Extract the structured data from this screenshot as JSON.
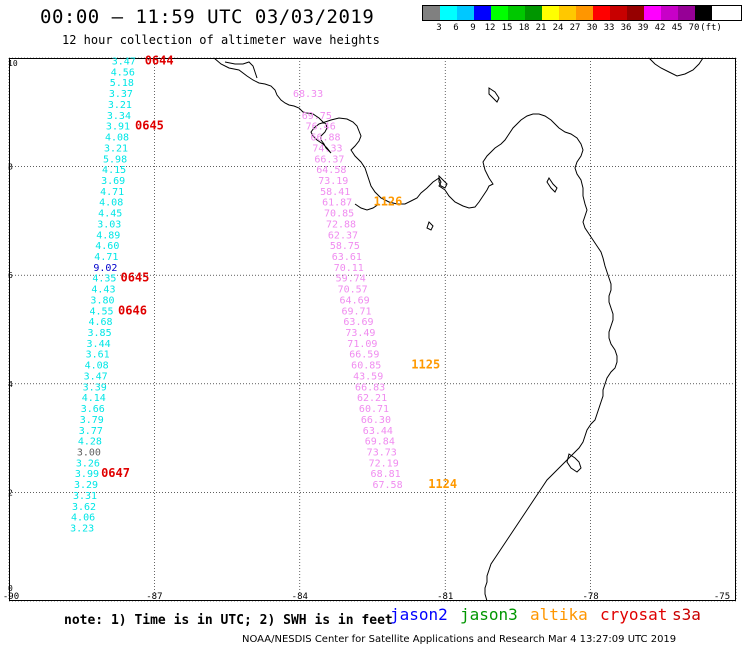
{
  "header": {
    "title": "00:00 – 11:59 UTC 03/03/2019",
    "subtitle": "12 hour collection of altimeter wave heights"
  },
  "scale": {
    "colors": [
      "#808080",
      "#00ffff",
      "#00c8ff",
      "#0000ff",
      "#00ff00",
      "#00c800",
      "#009600",
      "#ffff00",
      "#ffc800",
      "#ff9600",
      "#ff0000",
      "#c80000",
      "#960000",
      "#ff00ff",
      "#c800c8",
      "#960096",
      "#000000"
    ],
    "labels": [
      "3",
      "6",
      "9",
      "12",
      "15",
      "18",
      "21",
      "24",
      "27",
      "30",
      "33",
      "36",
      "39",
      "42",
      "45",
      "70",
      "(ft)"
    ]
  },
  "axes": {
    "x_ticks": [
      "-90",
      "-87",
      "-84",
      "-81",
      "-78",
      "-75"
    ],
    "y_ticks": [
      "0",
      "2",
      "4",
      "6",
      "8",
      "10"
    ]
  },
  "map": {
    "tracks": [
      {
        "satellite": "cryosat",
        "color": "#00e6e6",
        "points": [
          {
            "lon": -87.88,
            "lat": 9.88,
            "v": "3.47"
          },
          {
            "lon": -87.9,
            "lat": 9.68,
            "v": "4.56"
          },
          {
            "lon": -87.92,
            "lat": 9.48,
            "v": "5.18"
          },
          {
            "lon": -87.94,
            "lat": 9.28,
            "v": "3.37"
          },
          {
            "lon": -87.96,
            "lat": 9.08,
            "v": "3.21"
          },
          {
            "lon": -87.98,
            "lat": 8.88,
            "v": "3.34"
          },
          {
            "lon": -88.0,
            "lat": 8.68,
            "v": "3.91"
          },
          {
            "lon": -88.02,
            "lat": 8.48,
            "v": "4.08"
          },
          {
            "lon": -88.04,
            "lat": 8.28,
            "v": "3.21"
          },
          {
            "lon": -88.06,
            "lat": 8.08,
            "v": "5.98"
          },
          {
            "lon": -88.08,
            "lat": 7.88,
            "v": "4.15"
          },
          {
            "lon": -88.1,
            "lat": 7.68,
            "v": "3.69"
          },
          {
            "lon": -88.12,
            "lat": 7.48,
            "v": "4.71"
          },
          {
            "lon": -88.14,
            "lat": 7.28,
            "v": "4.08"
          },
          {
            "lon": -88.16,
            "lat": 7.08,
            "v": "4.45"
          },
          {
            "lon": -88.18,
            "lat": 6.88,
            "v": "3.03"
          },
          {
            "lon": -88.2,
            "lat": 6.68,
            "v": "4.89"
          },
          {
            "lon": -88.22,
            "lat": 6.48,
            "v": "4.60"
          },
          {
            "lon": -88.24,
            "lat": 6.28,
            "v": "4.71"
          },
          {
            "lon": -88.26,
            "lat": 6.08,
            "v": "9.02",
            "c": "#0000cc"
          },
          {
            "lon": -88.28,
            "lat": 5.88,
            "v": "4.35"
          },
          {
            "lon": -88.3,
            "lat": 5.68,
            "v": "4.43"
          },
          {
            "lon": -88.32,
            "lat": 5.48,
            "v": "3.80"
          },
          {
            "lon": -88.34,
            "lat": 5.28,
            "v": "4.55"
          },
          {
            "lon": -88.36,
            "lat": 5.08,
            "v": "4.68"
          },
          {
            "lon": -88.38,
            "lat": 4.88,
            "v": "3.85"
          },
          {
            "lon": -88.4,
            "lat": 4.68,
            "v": "3.44"
          },
          {
            "lon": -88.42,
            "lat": 4.48,
            "v": "3.61"
          },
          {
            "lon": -88.44,
            "lat": 4.28,
            "v": "4.08"
          },
          {
            "lon": -88.46,
            "lat": 4.08,
            "v": "3.47"
          },
          {
            "lon": -88.48,
            "lat": 3.88,
            "v": "3.39"
          },
          {
            "lon": -88.5,
            "lat": 3.68,
            "v": "4.14"
          },
          {
            "lon": -88.52,
            "lat": 3.48,
            "v": "3.66"
          },
          {
            "lon": -88.54,
            "lat": 3.28,
            "v": "3.79"
          },
          {
            "lon": -88.56,
            "lat": 3.08,
            "v": "3.77"
          },
          {
            "lon": -88.58,
            "lat": 2.88,
            "v": "4.28"
          },
          {
            "lon": -88.6,
            "lat": 2.68,
            "v": "3.00",
            "c": "#606060"
          },
          {
            "lon": -88.62,
            "lat": 2.48,
            "v": "3.26"
          },
          {
            "lon": -88.64,
            "lat": 2.28,
            "v": "3.99"
          },
          {
            "lon": -88.66,
            "lat": 2.08,
            "v": "3.29"
          },
          {
            "lon": -88.68,
            "lat": 1.88,
            "v": "3.31"
          },
          {
            "lon": -88.7,
            "lat": 1.68,
            "v": "3.62"
          },
          {
            "lon": -88.72,
            "lat": 1.48,
            "v": "4.06"
          },
          {
            "lon": -88.74,
            "lat": 1.28,
            "v": "3.23"
          }
        ]
      },
      {
        "satellite": "s3a",
        "color": "#f08cf0",
        "points": [
          {
            "lon": -84.14,
            "lat": 9.28,
            "v": "68.33"
          },
          {
            "lon": -83.96,
            "lat": 8.88,
            "v": "69.75"
          },
          {
            "lon": -83.88,
            "lat": 8.68,
            "v": "76.46"
          },
          {
            "lon": -83.78,
            "lat": 8.48,
            "v": "66.88"
          },
          {
            "lon": -83.74,
            "lat": 8.28,
            "v": "74.33"
          },
          {
            "lon": -83.7,
            "lat": 8.08,
            "v": "66.37"
          },
          {
            "lon": -83.66,
            "lat": 7.88,
            "v": "64.58"
          },
          {
            "lon": -83.62,
            "lat": 7.68,
            "v": "73.19"
          },
          {
            "lon": -83.58,
            "lat": 7.48,
            "v": "58.41"
          },
          {
            "lon": -83.54,
            "lat": 7.28,
            "v": "61.87"
          },
          {
            "lon": -83.5,
            "lat": 7.08,
            "v": "70.85"
          },
          {
            "lon": -83.46,
            "lat": 6.88,
            "v": "72.88"
          },
          {
            "lon": -83.42,
            "lat": 6.68,
            "v": "62.37"
          },
          {
            "lon": -83.38,
            "lat": 6.48,
            "v": "58.75"
          },
          {
            "lon": -83.34,
            "lat": 6.28,
            "v": "63.61"
          },
          {
            "lon": -83.3,
            "lat": 6.08,
            "v": "70.11"
          },
          {
            "lon": -83.26,
            "lat": 5.88,
            "v": "59.74"
          },
          {
            "lon": -83.22,
            "lat": 5.68,
            "v": "70.57"
          },
          {
            "lon": -83.18,
            "lat": 5.48,
            "v": "64.69"
          },
          {
            "lon": -83.14,
            "lat": 5.28,
            "v": "69.71"
          },
          {
            "lon": -83.1,
            "lat": 5.08,
            "v": "63.69"
          },
          {
            "lon": -83.06,
            "lat": 4.88,
            "v": "73.49"
          },
          {
            "lon": -83.02,
            "lat": 4.68,
            "v": "71.09"
          },
          {
            "lon": -82.98,
            "lat": 4.48,
            "v": "66.59"
          },
          {
            "lon": -82.94,
            "lat": 4.28,
            "v": "60.85"
          },
          {
            "lon": -82.9,
            "lat": 4.08,
            "v": "43.59"
          },
          {
            "lon": -82.86,
            "lat": 3.88,
            "v": "66.83"
          },
          {
            "lon": -82.82,
            "lat": 3.68,
            "v": "62.21"
          },
          {
            "lon": -82.78,
            "lat": 3.48,
            "v": "60.71"
          },
          {
            "lon": -82.74,
            "lat": 3.28,
            "v": "66.30"
          },
          {
            "lon": -82.7,
            "lat": 3.08,
            "v": "63.44"
          },
          {
            "lon": -82.66,
            "lat": 2.88,
            "v": "69.84"
          },
          {
            "lon": -82.62,
            "lat": 2.68,
            "v": "73.73"
          },
          {
            "lon": -82.58,
            "lat": 2.48,
            "v": "72.19"
          },
          {
            "lon": -82.54,
            "lat": 2.28,
            "v": "68.81"
          },
          {
            "lon": -82.5,
            "lat": 2.08,
            "v": "67.58"
          }
        ]
      }
    ],
    "time_labels": [
      {
        "text": "0644",
        "color": "#e00000",
        "lon": -87.2,
        "lat": 9.88
      },
      {
        "text": "0645",
        "color": "#e00000",
        "lon": -87.4,
        "lat": 8.68
      },
      {
        "text": "0645",
        "color": "#e00000",
        "lon": -87.7,
        "lat": 5.88
      },
      {
        "text": "0646",
        "color": "#e00000",
        "lon": -87.75,
        "lat": 5.28
      },
      {
        "text": "0647",
        "color": "#e00000",
        "lon": -88.1,
        "lat": 2.28
      },
      {
        "text": "1126",
        "color": "#ff9900",
        "lon": -82.48,
        "lat": 7.28
      },
      {
        "text": "1125",
        "color": "#ff9900",
        "lon": -81.7,
        "lat": 4.28
      },
      {
        "text": "1124",
        "color": "#ff9900",
        "lon": -81.35,
        "lat": 2.08
      }
    ]
  },
  "footer": {
    "note": "note: 1) Time is in UTC; 2) SWH is in feet",
    "satellites": [
      {
        "name": "jason2",
        "color": "#0000ff"
      },
      {
        "name": "jason3",
        "color": "#009600"
      },
      {
        "name": "altika",
        "color": "#ff9600"
      },
      {
        "name": "cryosat",
        "color": "#e00000"
      },
      {
        "name": "s3a",
        "color": "#c80000"
      }
    ],
    "credit": "NOAA/NESDIS Center for Satellite Applications and Research    Mar  4 13:27:09 UTC 2019"
  }
}
